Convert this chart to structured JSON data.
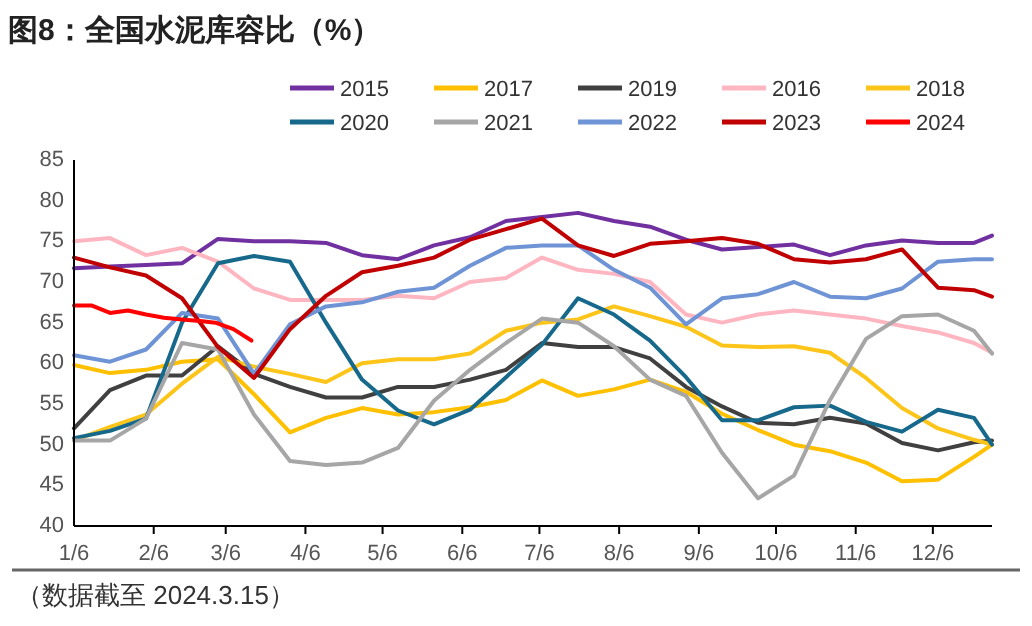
{
  "chart_data": {
    "type": "line",
    "title": "图8：全国水泥库容比（%）",
    "annotations": [
      "（数据截至 2024.3.15）"
    ],
    "x": [
      "--01-06",
      "--01-20",
      "--02-03",
      "--02-17",
      "--03-03",
      "--03-17",
      "--03-31",
      "--04-14",
      "--04-28",
      "--05-12",
      "--05-26",
      "--06-09",
      "--06-23",
      "--07-07",
      "--07-21",
      "--08-04",
      "--08-18",
      "--09-01",
      "--09-15",
      "--09-29",
      "--10-13",
      "--10-27",
      "--11-10",
      "--11-24",
      "--12-08",
      "--12-22",
      "--12-29"
    ],
    "xlim": [
      "--01-06",
      "--12-29"
    ],
    "xticks": [
      {
        "value": "--01-06",
        "label": "1/6"
      },
      {
        "value": "--02-06",
        "label": "2/6"
      },
      {
        "value": "--03-06",
        "label": "3/6"
      },
      {
        "value": "--04-06",
        "label": "4/6"
      },
      {
        "value": "--05-06",
        "label": "5/6"
      },
      {
        "value": "--06-06",
        "label": "6/6"
      },
      {
        "value": "--07-06",
        "label": "7/6"
      },
      {
        "value": "--08-06",
        "label": "8/6"
      },
      {
        "value": "--09-06",
        "label": "9/6"
      },
      {
        "value": "--10-06",
        "label": "10/6"
      },
      {
        "value": "--11-06",
        "label": "11/6"
      },
      {
        "value": "--12-06",
        "label": "12/6"
      }
    ],
    "ylim": [
      40,
      85
    ],
    "yticks": [
      40,
      45,
      50,
      55,
      60,
      65,
      70,
      75,
      80,
      85
    ],
    "legend": "top",
    "grid": false,
    "line_style": "solid",
    "series": [
      {
        "name": "2015",
        "color": "#7030a0",
        "values": [
          71.7,
          71.9,
          72.1,
          72.3,
          75.3,
          75,
          75,
          74.8,
          73.3,
          72.8,
          74.5,
          75.5,
          77.5,
          78,
          78.5,
          77.5,
          76.8,
          75.2,
          74,
          74.3,
          74.6,
          73.3,
          74.5,
          75.1,
          74.8,
          74.8,
          75.7
        ]
      },
      {
        "name": "2017",
        "color": "#ffc000",
        "values": [
          59.8,
          58.8,
          59.2,
          60.2,
          60.5,
          56.2,
          51.5,
          53.3,
          54.5,
          53.7,
          54,
          54.6,
          55.5,
          57.9,
          56,
          56.8,
          58,
          56.5,
          53.8,
          51.8,
          50,
          49.2,
          47.8,
          45.5,
          45.7,
          48.5,
          50
        ]
      },
      {
        "name": "2019",
        "color": "#404040",
        "values": [
          52,
          56.7,
          58.5,
          58.5,
          62.1,
          58.7,
          57.1,
          55.8,
          55.8,
          57.1,
          57.1,
          58,
          59.2,
          62.5,
          62,
          62,
          60.6,
          57.1,
          54.7,
          52.7,
          52.5,
          53.3,
          52.6,
          50.2,
          49.3,
          50.3,
          50.5
        ]
      },
      {
        "name": "2016",
        "color": "#ffb6c1",
        "values": [
          75,
          75.4,
          73.3,
          74.2,
          72.5,
          69.2,
          67.8,
          67.8,
          67.8,
          68.3,
          68,
          70,
          70.5,
          73,
          71.5,
          71,
          70,
          66,
          65,
          66,
          66.5,
          66,
          65.5,
          64.6,
          63.8,
          62.5,
          61.3
        ]
      },
      {
        "name": "2018",
        "color": "#fdc51a",
        "values": [
          50.5,
          52.2,
          53.7,
          57.5,
          60.8,
          59.6,
          58.7,
          57.7,
          60,
          60.5,
          60.5,
          61.2,
          64,
          65,
          65.4,
          67,
          65.8,
          64.5,
          62.2,
          62,
          62.1,
          61.3,
          58.2,
          54.5,
          52,
          50.6,
          50
        ]
      },
      {
        "name": "2020",
        "color": "#17698c",
        "values": [
          50.8,
          51.7,
          53.2,
          65,
          72.3,
          73.2,
          72.5,
          65,
          58,
          54.2,
          52.5,
          54.3,
          58.3,
          62.3,
          68,
          66,
          62.8,
          58.3,
          53,
          53,
          54.6,
          54.8,
          52.8,
          51.6,
          54.3,
          53.3,
          50
        ]
      },
      {
        "name": "2021",
        "color": "#a6a6a6",
        "values": [
          50.5,
          50.5,
          53.2,
          62.5,
          61.7,
          53.7,
          48,
          47.5,
          47.8,
          49.6,
          55.4,
          59.2,
          62.5,
          65.5,
          65,
          62.1,
          58,
          56,
          49,
          43.4,
          46.2,
          55.5,
          63,
          65.8,
          66,
          64,
          61.2
        ]
      },
      {
        "name": "2022",
        "color": "#6f94d6",
        "values": [
          61,
          60.2,
          61.7,
          66.2,
          65.5,
          58.7,
          64.8,
          67,
          67.5,
          68.8,
          69.3,
          72,
          74.2,
          74.5,
          74.5,
          71.5,
          69.3,
          64.8,
          68,
          68.5,
          70,
          68.2,
          68,
          69.2,
          72.5,
          72.8,
          72.8
        ]
      },
      {
        "name": "2023",
        "color": "#c00000",
        "values": [
          73,
          71.8,
          70.8,
          68,
          62,
          58.2,
          64.2,
          68.3,
          71.2,
          72,
          73,
          75.2,
          76.5,
          77.8,
          74.5,
          73.2,
          74.7,
          75,
          75.4,
          74.7,
          72.8,
          72.4,
          72.8,
          74,
          69.3,
          69,
          68.2
        ]
      },
      {
        "name": "2024",
        "color": "#ff0000",
        "x": [
          "--01-06",
          "--01-13",
          "--01-20",
          "--01-27",
          "--02-03",
          "--02-10",
          "--02-17",
          "--02-24",
          "--03-02",
          "--03-09",
          "--03-16"
        ],
        "values": [
          67.1,
          67.1,
          66.2,
          66.5,
          66,
          65.6,
          65.4,
          65.2,
          65,
          64.2,
          62.8
        ]
      }
    ]
  }
}
